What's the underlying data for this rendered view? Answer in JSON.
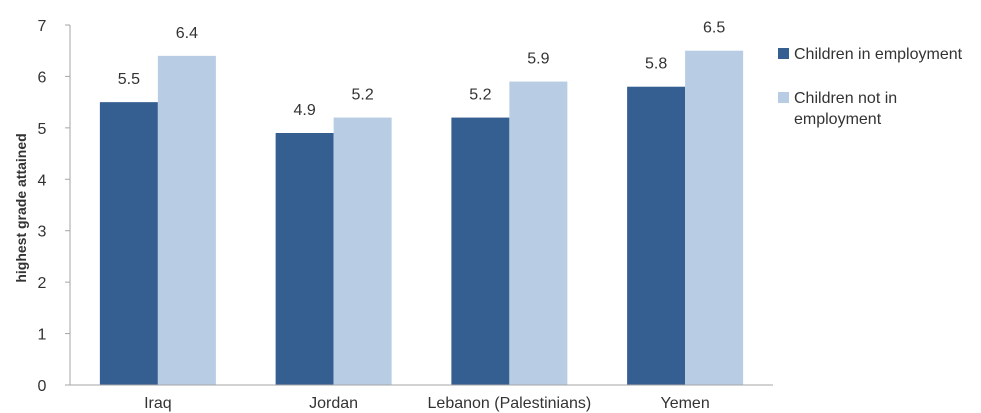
{
  "chart_data": {
    "type": "bar",
    "categories": [
      "Iraq",
      "Jordan",
      "Lebanon (Palestinians)",
      "Yemen"
    ],
    "series": [
      {
        "name": "Children in employment",
        "values": [
          5.5,
          4.9,
          5.2,
          5.8
        ],
        "color": "#365f91"
      },
      {
        "name": "Children not in employment",
        "values": [
          6.4,
          5.2,
          5.9,
          6.5
        ],
        "color": "#b8cce4"
      }
    ],
    "title": "",
    "xlabel": "",
    "ylabel": "highest grade attained",
    "ylim": [
      0,
      7
    ],
    "yticks": [
      "0",
      "1",
      "2",
      "3",
      "4",
      "5",
      "6",
      "7"
    ],
    "data_labels": [
      [
        "5.5",
        "4.9",
        "5.2",
        "5.8"
      ],
      [
        "6.4",
        "5.2",
        "5.9",
        "6.5"
      ]
    ],
    "grid": false,
    "legend_position": "right"
  }
}
